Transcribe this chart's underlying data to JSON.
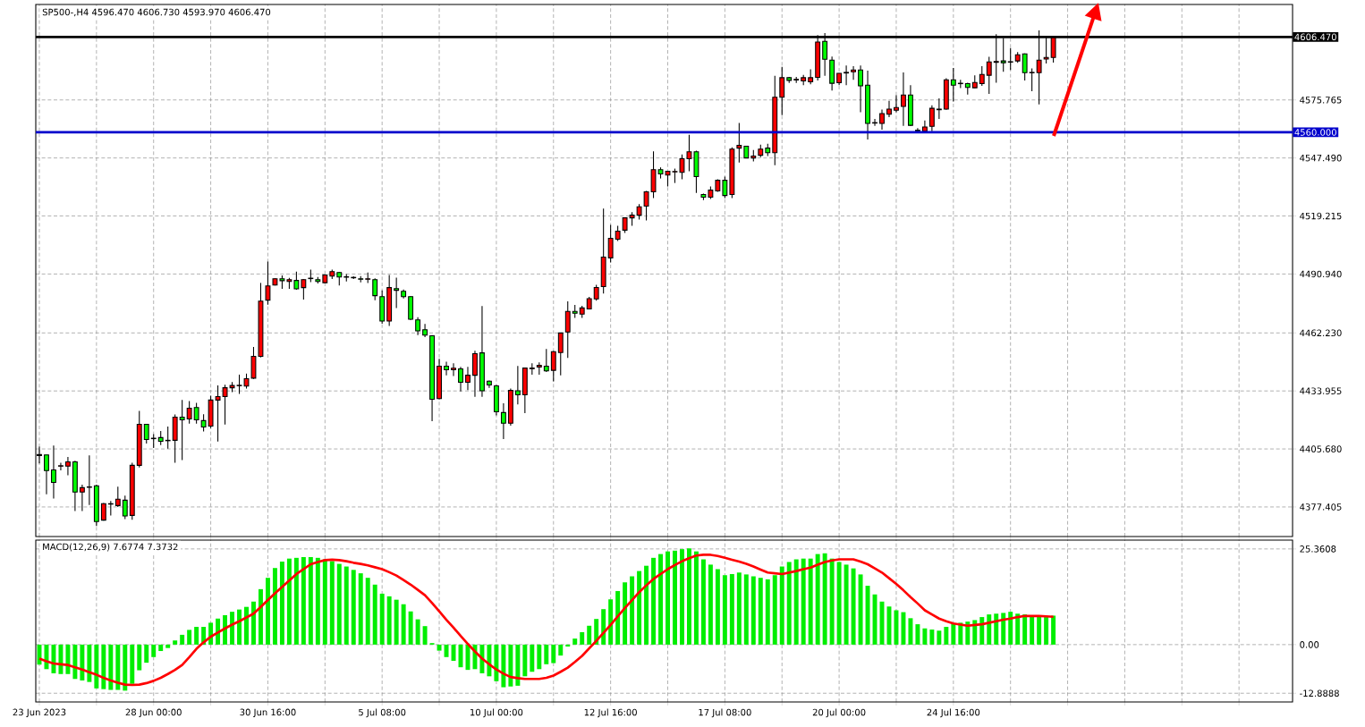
{
  "chart_data": [
    {
      "type": "candlestick",
      "title": "SP500-,H4  4596.470 4606.730 4593.970 4606.470",
      "categories": [
        null,
        null,
        null,
        null,
        null,
        null,
        null,
        null,
        null,
        null,
        null,
        null,
        null,
        null,
        null,
        null,
        null,
        null,
        null,
        null,
        null,
        null,
        null,
        null,
        null,
        null,
        null,
        null,
        null,
        null,
        null,
        null,
        null,
        null,
        null,
        null,
        null,
        null,
        null,
        null,
        null,
        null,
        null,
        null,
        null,
        null,
        null,
        null,
        null,
        null,
        null,
        null,
        null,
        null,
        null,
        null,
        null,
        null,
        null,
        null,
        null,
        null,
        null,
        null,
        null,
        null,
        null,
        null,
        null,
        null,
        null,
        null,
        null,
        null,
        null,
        null,
        null,
        null,
        null,
        null,
        null,
        null,
        null,
        null,
        null,
        null,
        null,
        null,
        null,
        null,
        null,
        null,
        null,
        null,
        null,
        null,
        null,
        null,
        null,
        null,
        null,
        null,
        null,
        null,
        null,
        null,
        null,
        null,
        null,
        null,
        null,
        null,
        null,
        null,
        null,
        null,
        null,
        null,
        null,
        null,
        null,
        null,
        null,
        null,
        null,
        null,
        null,
        null,
        null,
        null,
        null,
        null,
        null,
        null,
        null,
        null,
        null,
        null,
        null,
        null,
        null,
        null,
        null,
        null,
        null,
        null,
        null,
        null,
        null,
        null,
        null,
        null,
        null,
        null,
        null,
        null,
        null,
        null,
        null,
        null,
        null,
        null,
        null,
        null,
        null,
        null,
        null,
        null,
        null,
        null,
        null,
        null,
        null,
        null,
        null,
        null
      ],
      "ohlc": [
        [
          4402.5,
          4406.8,
          4398.6,
          4403.0
        ],
        [
          4402.8,
          4402.8,
          4383.6,
          4395.1
        ],
        [
          4395.5,
          4407.3,
          4381.5,
          4389.4
        ],
        [
          4397.3,
          4398.9,
          4395.2,
          4397.5
        ],
        [
          4397.3,
          4401.8,
          4392.8,
          4399.4
        ],
        [
          4399.4,
          4399.9,
          4375.4,
          4384.7
        ],
        [
          4384.7,
          4388.3,
          4375.4,
          4386.8
        ],
        [
          4387.0,
          4402.5,
          4378.4,
          4387.2
        ],
        [
          4387.7,
          4388.3,
          4368.1,
          4370.3
        ],
        [
          4371.0,
          4379.3,
          4370.7,
          4379.0
        ],
        [
          4378.8,
          4380.3,
          4373.2,
          4379.0
        ],
        [
          4378.1,
          4387.3,
          4377.4,
          4381.2
        ],
        [
          4380.7,
          4382.9,
          4371.5,
          4373.0
        ],
        [
          4373.3,
          4399.0,
          4371.2,
          4397.7
        ],
        [
          4397.7,
          4424.2,
          4396.7,
          4417.7
        ],
        [
          4417.7,
          4417.7,
          4408.3,
          4410.3
        ],
        [
          4410.7,
          4412.9,
          4406.1,
          4410.9
        ],
        [
          4411.2,
          4414.4,
          4407.6,
          4409.4
        ],
        [
          4409.7,
          4416.6,
          4405.8,
          4409.9
        ],
        [
          4409.9,
          4422.5,
          4398.9,
          4421.2
        ],
        [
          4421.2,
          4429.6,
          4400.3,
          4419.9
        ],
        [
          4420.3,
          4429.0,
          4418.0,
          4425.5
        ],
        [
          4425.9,
          4428.2,
          4418.0,
          4419.9
        ],
        [
          4419.5,
          4422.6,
          4414.2,
          4416.4
        ],
        [
          4416.8,
          4431.6,
          4415.8,
          4429.5
        ],
        [
          4429.5,
          4436.6,
          4409.3,
          4431.2
        ],
        [
          4431.2,
          4437.0,
          4417.6,
          4435.5
        ],
        [
          4435.5,
          4438.3,
          4433.4,
          4436.6
        ],
        [
          4436.5,
          4441.9,
          4432.5,
          4436.7
        ],
        [
          4436.3,
          4442.4,
          4435.1,
          4439.9
        ],
        [
          4440.2,
          4455.4,
          4439.8,
          4450.8
        ],
        [
          4450.8,
          4486.6,
          4450.3,
          4477.7
        ],
        [
          4478.2,
          4497.0,
          4476.0,
          4485.1
        ],
        [
          4485.6,
          4488.8,
          4485.4,
          4488.6
        ],
        [
          4488.6,
          4490.2,
          4483.7,
          4487.7
        ],
        [
          4487.3,
          4489.1,
          4483.7,
          4488.2
        ],
        [
          4487.8,
          4492.1,
          4483.3,
          4483.7
        ],
        [
          4484.3,
          4488.4,
          4478.5,
          4488.2
        ],
        [
          4488.7,
          4493.1,
          4487.0,
          4488.9
        ],
        [
          4488.2,
          4489.5,
          4486.3,
          4487.3
        ],
        [
          4486.7,
          4490.7,
          4486.5,
          4490.5
        ],
        [
          4489.9,
          4493.1,
          4488.5,
          4492.1
        ],
        [
          4491.7,
          4491.9,
          4485.4,
          4489.5
        ],
        [
          4489.6,
          4490.9,
          4487.3,
          4489.4
        ],
        [
          4489.3,
          4489.8,
          4488.5,
          4489.1
        ],
        [
          4488.6,
          4489.9,
          4486.9,
          4488.4
        ],
        [
          4488.4,
          4491.7,
          4486.6,
          4488.6
        ],
        [
          4488.2,
          4488.8,
          4478.2,
          4480.4
        ],
        [
          4479.9,
          4483.0,
          4466.7,
          4468.0
        ],
        [
          4468.0,
          4490.5,
          4465.6,
          4484.3
        ],
        [
          4483.8,
          4489.2,
          4474.3,
          4483.0
        ],
        [
          4482.5,
          4483.4,
          4479.0,
          4479.9
        ],
        [
          4479.9,
          4480.1,
          4468.5,
          4468.9
        ],
        [
          4468.6,
          4469.9,
          4461.2,
          4463.2
        ],
        [
          4463.8,
          4466.6,
          4460.2,
          4461.2
        ],
        [
          4460.8,
          4461.2,
          4419.2,
          4429.9
        ],
        [
          4430.2,
          4449.6,
          4429.9,
          4446.0
        ],
        [
          4446.0,
          4448.2,
          4441.5,
          4444.3
        ],
        [
          4444.3,
          4447.4,
          4441.2,
          4445.0
        ],
        [
          4444.7,
          4445.7,
          4433.7,
          4438.2
        ],
        [
          4438.2,
          4445.7,
          4434.4,
          4441.6
        ],
        [
          4441.6,
          4453.5,
          4431.1,
          4452.1
        ],
        [
          4452.5,
          4475.3,
          4431.1,
          4434.0
        ],
        [
          4438.7,
          4439.0,
          4435.4,
          4436.9
        ],
        [
          4436.4,
          4436.9,
          4422.1,
          4423.8
        ],
        [
          4423.4,
          4427.9,
          4410.5,
          4418.2
        ],
        [
          4418.2,
          4435.1,
          4417.0,
          4434.2
        ],
        [
          4434.0,
          4446.1,
          4427.4,
          4432.1
        ],
        [
          4432.1,
          4445.3,
          4423.1,
          4445.1
        ],
        [
          4444.8,
          4447.4,
          4441.9,
          4445.1
        ],
        [
          4445.6,
          4447.9,
          4441.9,
          4446.4
        ],
        [
          4446.0,
          4454.4,
          4443.2,
          4443.7
        ],
        [
          4444.0,
          4453.4,
          4438.6,
          4453.1
        ],
        [
          4452.7,
          4462.4,
          4441.6,
          4462.2
        ],
        [
          4462.7,
          4477.6,
          4450.1,
          4472.7
        ],
        [
          4472.7,
          4475.9,
          4469.6,
          4471.8
        ],
        [
          4471.4,
          4475.4,
          4469.6,
          4474.4
        ],
        [
          4473.9,
          4479.8,
          4473.7,
          4478.9
        ],
        [
          4478.8,
          4485.7,
          4477.9,
          4484.4
        ],
        [
          4484.8,
          4522.8,
          4481.4,
          4499.2
        ],
        [
          4498.8,
          4514.9,
          4496.6,
          4508.3
        ],
        [
          4507.9,
          4514.4,
          4507.0,
          4511.8
        ],
        [
          4512.3,
          4518.5,
          4510.9,
          4518.3
        ],
        [
          4518.3,
          4521.1,
          4514.4,
          4519.6
        ],
        [
          4519.6,
          4525.0,
          4517.5,
          4523.7
        ],
        [
          4524.0,
          4531.4,
          4517.0,
          4531.0
        ],
        [
          4531.0,
          4550.7,
          4527.9,
          4541.8
        ],
        [
          4541.8,
          4542.9,
          4537.5,
          4539.7
        ],
        [
          4539.2,
          4541.2,
          4533.6,
          4541.0
        ],
        [
          4540.7,
          4542.3,
          4535.3,
          4540.9
        ],
        [
          4540.5,
          4549.2,
          4537.1,
          4547.1
        ],
        [
          4547.1,
          4558.8,
          4541.0,
          4550.5
        ],
        [
          4550.5,
          4551.0,
          4530.4,
          4538.4
        ],
        [
          4529.7,
          4530.1,
          4527.0,
          4528.4
        ],
        [
          4528.4,
          4533.6,
          4527.5,
          4531.8
        ],
        [
          4531.4,
          4537.1,
          4531.0,
          4536.6
        ],
        [
          4536.6,
          4538.4,
          4527.9,
          4529.2
        ],
        [
          4529.7,
          4552.7,
          4527.9,
          4551.8
        ],
        [
          4552.3,
          4564.6,
          4545.3,
          4553.6
        ],
        [
          4553.2,
          4553.4,
          4547.3,
          4547.5
        ],
        [
          4547.5,
          4551.4,
          4545.8,
          4548.4
        ],
        [
          4548.8,
          4554.0,
          4547.9,
          4551.8
        ],
        [
          4552.3,
          4554.4,
          4548.4,
          4550.1
        ],
        [
          4550.1,
          4587.5,
          4544.0,
          4577.1
        ],
        [
          4577.1,
          4591.9,
          4568.4,
          4586.6
        ],
        [
          4586.6,
          4587.0,
          4584.0,
          4585.3
        ],
        [
          4585.5,
          4587.0,
          4584.0,
          4585.8
        ],
        [
          4585.0,
          4588.0,
          4583.0,
          4586.6
        ],
        [
          4584.6,
          4590.7,
          4583.4,
          4586.6
        ],
        [
          4586.8,
          4607.4,
          4585.2,
          4604.0
        ],
        [
          4604.3,
          4608.4,
          4587.5,
          4595.6
        ],
        [
          4595.2,
          4596.9,
          4580.3,
          4583.9
        ],
        [
          4584.2,
          4588.9,
          4583.0,
          4588.7
        ],
        [
          4588.9,
          4592.6,
          4583.0,
          4589.2
        ],
        [
          4589.5,
          4592.2,
          4585.6,
          4590.4
        ],
        [
          4590.4,
          4592.6,
          4569.8,
          4582.6
        ],
        [
          4583.0,
          4590.1,
          4556.5,
          4564.3
        ],
        [
          4564.5,
          4566.5,
          4563.1,
          4564.7
        ],
        [
          4564.3,
          4571.1,
          4561.3,
          4569.1
        ],
        [
          4568.8,
          4575.3,
          4567.4,
          4571.3
        ],
        [
          4570.8,
          4578.1,
          4569.8,
          4572.1
        ],
        [
          4572.6,
          4589.2,
          4563.1,
          4578.2
        ],
        [
          4578.2,
          4583.0,
          4563.0,
          4563.4
        ],
        [
          4561.0,
          4562.0,
          4559.7,
          4560.7
        ],
        [
          4560.5,
          4565.8,
          4560.3,
          4562.6
        ],
        [
          4562.9,
          4573.2,
          4560.5,
          4571.7
        ],
        [
          4571.3,
          4576.5,
          4566.5,
          4571.0
        ],
        [
          4571.3,
          4586.3,
          4571.0,
          4585.6
        ],
        [
          4585.6,
          4591.3,
          4575.0,
          4583.0
        ],
        [
          4583.7,
          4585.6,
          4581.6,
          4583.9
        ],
        [
          4583.7,
          4584.2,
          4578.4,
          4581.9
        ],
        [
          4581.7,
          4587.8,
          4581.5,
          4584.3
        ],
        [
          4583.7,
          4592.2,
          4582.6,
          4588.2
        ],
        [
          4587.8,
          4596.8,
          4578.7,
          4594.3
        ],
        [
          4594.1,
          4607.8,
          4584.2,
          4594.5
        ],
        [
          4594.8,
          4605.9,
          4589.5,
          4593.9
        ],
        [
          4594.2,
          4601.1,
          4590.4,
          4594.4
        ],
        [
          4594.8,
          4599.1,
          4593.9,
          4597.8
        ],
        [
          4598.2,
          4598.4,
          4585.2,
          4589.1
        ],
        [
          4589.0,
          4591.1,
          4580.0,
          4589.2
        ],
        [
          4589.1,
          4609.7,
          4573.6,
          4595.2
        ],
        [
          4595.7,
          4606.2,
          4593.5,
          4596.5
        ],
        [
          4596.47,
          4606.73,
          4593.97,
          4606.47
        ],
        null,
        null,
        null,
        null,
        null,
        null,
        null,
        null,
        null,
        null,
        null,
        null,
        null,
        null,
        null,
        null,
        null,
        null,
        null,
        null,
        null,
        null,
        null,
        null,
        null,
        null,
        null,
        null,
        null,
        null,
        null,
        null,
        null
      ],
      "colors": [
        "#ff0000",
        "#00ff00",
        "#00ff00",
        "#ff0000",
        "#ff0000",
        "#00ff00",
        "#ff0000",
        "#ff0000",
        "#00ff00",
        "#ff0000",
        "#ff0000",
        "#ff0000",
        "#00ff00",
        "#ff0000",
        "#ff0000",
        "#00ff00",
        "#ff0000",
        "#00ff00",
        "#ff0000",
        "#ff0000",
        "#00ff00",
        "#ff0000",
        "#00ff00",
        "#00ff00",
        "#ff0000",
        "#ff0000",
        "#ff0000",
        "#ff0000",
        "#ff0000",
        "#ff0000",
        "#ff0000",
        "#ff0000",
        "#ff0000",
        "#ff0000",
        "#00ff00",
        "#ff0000",
        "#00ff00",
        "#ff0000",
        "#ff0000",
        "#00ff00",
        "#ff0000",
        "#ff0000",
        "#00ff00",
        "#00ff00",
        "#00ff00",
        "#00ff00",
        "#ff0000",
        "#00ff00",
        "#00ff00",
        "#ff0000",
        "#00ff00",
        "#00ff00",
        "#00ff00",
        "#00ff00",
        "#00ff00",
        "#00ff00",
        "#ff0000",
        "#00ff00",
        "#ff0000",
        "#00ff00",
        "#ff0000",
        "#ff0000",
        "#00ff00",
        "#00ff00",
        "#00ff00",
        "#00ff00",
        "#ff0000",
        "#00ff00",
        "#ff0000",
        "#ff0000",
        "#ff0000",
        "#00ff00",
        "#ff0000",
        "#ff0000",
        "#ff0000",
        "#00ff00",
        "#ff0000",
        "#ff0000",
        "#ff0000",
        "#ff0000",
        "#ff0000",
        "#ff0000",
        "#ff0000",
        "#ff0000",
        "#ff0000",
        "#ff0000",
        "#ff0000",
        "#00ff00",
        "#ff0000",
        "#ff0000",
        "#ff0000",
        "#ff0000",
        "#00ff00",
        "#00ff00",
        "#ff0000",
        "#ff0000",
        "#00ff00",
        "#ff0000",
        "#ff0000",
        "#00ff00",
        "#ff0000",
        "#ff0000",
        "#00ff00",
        "#ff0000",
        "#ff0000",
        "#00ff00",
        "#ff0000",
        "#ff0000",
        "#ff0000",
        "#ff0000",
        "#00ff00",
        "#00ff00",
        "#ff0000",
        "#ff0000",
        "#ff0000",
        "#00ff00",
        "#00ff00",
        "#ff0000",
        "#ff0000",
        "#ff0000",
        "#ff0000",
        "#ff0000",
        "#00ff00",
        "#00ff00",
        "#ff0000",
        "#ff0000",
        "#00ff00",
        "#ff0000",
        "#00ff00",
        "#ff0000",
        "#00ff00",
        "#ff0000",
        "#ff0000",
        "#ff0000",
        "#ff0000",
        "#00ff00",
        "#ff0000",
        "#ff0000",
        "#00ff00",
        "#ff0000",
        "#ff0000",
        "#ff0000",
        "#ff0000",
        null,
        null,
        null,
        null,
        null,
        null,
        null,
        null,
        null,
        null,
        null,
        null,
        null,
        null,
        null,
        null,
        null,
        null,
        null,
        null,
        null,
        null,
        null,
        null,
        null,
        null,
        null,
        null,
        null,
        null,
        null,
        null,
        null
      ],
      "ylim": [
        4363.0,
        4622.3
      ],
      "yticks": [
        4377.405,
        {
          "value": 4405.68,
          "label": "4405.680"
        },
        4433.955,
        {
          "value": 4462.23,
          "label": "4462.230"
        },
        {
          "value": 4490.94,
          "label": "4490.940"
        },
        4519.215,
        {
          "value": 4547.49,
          "label": "4547.490"
        },
        4575.765
      ],
      "ref_lines": [
        {
          "axis": "y",
          "value": 4560,
          "label": "4560.000",
          "color": "#0000cc"
        },
        {
          "axis": "y",
          "value": 4606.47,
          "label": "4606.470",
          "color": "#000000"
        }
      ],
      "grid": true,
      "tick_labels": "y"
    },
    {
      "type": "bar",
      "title": "MACD(12,26,9) 7.6774 7.3732",
      "categories": [
        "23 Jun 2023",
        null,
        null,
        null,
        null,
        null,
        null,
        null,
        null,
        null,
        null,
        null,
        null,
        null,
        null,
        null,
        "28 Jun 00:00",
        null,
        null,
        null,
        null,
        null,
        null,
        null,
        null,
        null,
        null,
        null,
        null,
        null,
        null,
        null,
        "30 Jun 16:00",
        null,
        null,
        null,
        null,
        null,
        null,
        null,
        null,
        null,
        null,
        null,
        null,
        null,
        null,
        null,
        "5 Jul 08:00",
        null,
        null,
        null,
        null,
        null,
        null,
        null,
        null,
        null,
        null,
        null,
        null,
        null,
        null,
        null,
        "10 Jul 00:00",
        null,
        null,
        null,
        null,
        null,
        null,
        null,
        null,
        null,
        null,
        null,
        null,
        null,
        null,
        null,
        "12 Jul 16:00",
        null,
        null,
        null,
        null,
        null,
        null,
        null,
        null,
        null,
        null,
        null,
        null,
        null,
        null,
        null,
        "17 Jul 08:00",
        null,
        null,
        null,
        null,
        null,
        null,
        null,
        null,
        null,
        null,
        null,
        null,
        null,
        null,
        null,
        "20 Jul 00:00",
        null,
        null,
        null,
        null,
        null,
        null,
        null,
        null,
        null,
        null,
        null,
        null,
        null,
        null,
        null,
        "24 Jul 16:00",
        null,
        null,
        null,
        null,
        null,
        null,
        null,
        null,
        null,
        null,
        null,
        null,
        null,
        null,
        null,
        null,
        null,
        null,
        null,
        null,
        null,
        null,
        null,
        null,
        null,
        null,
        null,
        null,
        null,
        null,
        null,
        null,
        null,
        null,
        null,
        null,
        null,
        null,
        null,
        null,
        null,
        null,
        null,
        null,
        null,
        null,
        null
      ],
      "series": [
        {
          "type": "bar",
          "color": "#00ee00",
          "values": [
            -5.3,
            -6.5,
            -7.6,
            -7.8,
            -7.8,
            -9.1,
            -9.5,
            -9.9,
            -11.6,
            -11.8,
            -12.0,
            -12.0,
            -12.2,
            -10.4,
            -6.8,
            -4.8,
            -3.3,
            -1.7,
            -0.9,
            1.1,
            2.6,
            3.9,
            4.7,
            4.7,
            5.8,
            6.9,
            7.8,
            8.7,
            9.3,
            10.0,
            11.4,
            14.7,
            17.7,
            20.3,
            22.0,
            22.8,
            23.0,
            23.2,
            23.2,
            23.0,
            22.6,
            22.1,
            21.4,
            20.7,
            19.8,
            18.9,
            17.7,
            15.9,
            13.5,
            12.8,
            11.9,
            10.7,
            8.8,
            6.7,
            4.9,
            0.4,
            -1.6,
            -3.3,
            -4.3,
            -6.0,
            -6.7,
            -6.5,
            -7.6,
            -8.4,
            -9.7,
            -11.3,
            -11.1,
            -10.9,
            -8.4,
            -7.2,
            -6.5,
            -5.2,
            -4.9,
            -2.9,
            -0.5,
            1.6,
            3.3,
            5.0,
            6.8,
            9.4,
            12.0,
            14.2,
            16.5,
            18.1,
            19.5,
            20.9,
            23.0,
            24.0,
            24.7,
            24.9,
            25.3,
            25.5,
            24.7,
            22.6,
            21.2,
            20.0,
            18.4,
            18.7,
            19.1,
            18.6,
            18.1,
            17.7,
            17.3,
            18.4,
            20.7,
            21.9,
            22.6,
            22.8,
            22.8,
            24.0,
            24.2,
            22.8,
            21.9,
            21.2,
            20.2,
            18.6,
            15.6,
            13.3,
            11.4,
            10.1,
            9.1,
            8.6,
            7.0,
            5.4,
            4.3,
            4.0,
            3.7,
            4.7,
            5.6,
            5.8,
            6.1,
            6.5,
            7.3,
            8.0,
            8.2,
            8.4,
            8.7,
            8.2,
            8.0,
            7.5,
            7.5,
            7.5,
            7.6774,
            null,
            null,
            null,
            null,
            null,
            null,
            null,
            null,
            null,
            null,
            null,
            null,
            null,
            null,
            null,
            null,
            null,
            null,
            null,
            null,
            null,
            null,
            null,
            null,
            null,
            null,
            null,
            null,
            null,
            null,
            null,
            null,
            null
          ]
        },
        {
          "type": "line",
          "color": "#ff0000",
          "marker": "none",
          "values": [
            -3.7,
            -4.4,
            -5.0,
            -5.2,
            -5.4,
            -6.0,
            -6.6,
            -7.3,
            -8.0,
            -8.8,
            -9.5,
            -10.1,
            -10.6,
            -10.7,
            -10.6,
            -10.2,
            -9.6,
            -8.8,
            -7.8,
            -6.7,
            -5.4,
            -3.3,
            -1.1,
            0.6,
            2.1,
            3.2,
            4.3,
            5.3,
            6.2,
            7.2,
            8.2,
            10.0,
            11.8,
            13.6,
            15.3,
            17.0,
            18.7,
            20.0,
            21.3,
            21.9,
            22.4,
            22.5,
            22.4,
            22.1,
            21.7,
            21.4,
            21.0,
            20.5,
            20.0,
            19.2,
            18.3,
            17.1,
            15.9,
            14.5,
            13.1,
            11.0,
            8.8,
            6.6,
            4.5,
            2.3,
            0.2,
            -1.8,
            -3.7,
            -5.2,
            -6.6,
            -7.7,
            -8.6,
            -8.9,
            -9.1,
            -9.1,
            -9.1,
            -8.8,
            -8.2,
            -7.2,
            -6.1,
            -4.6,
            -3.0,
            -1.0,
            1.0,
            3.1,
            5.2,
            7.5,
            9.7,
            11.8,
            13.9,
            15.7,
            17.4,
            18.7,
            20.0,
            21.1,
            22.1,
            22.9,
            23.6,
            23.8,
            23.8,
            23.5,
            23.0,
            22.5,
            22.0,
            21.4,
            20.7,
            19.9,
            19.1,
            18.9,
            18.7,
            19.1,
            19.5,
            20.0,
            20.4,
            21.2,
            21.9,
            22.3,
            22.6,
            22.6,
            22.6,
            22.0,
            21.3,
            20.2,
            19.1,
            17.6,
            16.1,
            14.4,
            12.6,
            10.9,
            9.1,
            8.0,
            6.9,
            6.2,
            5.6,
            5.3,
            5.0,
            5.2,
            5.4,
            5.8,
            6.2,
            6.6,
            6.9,
            7.3,
            7.6,
            7.6,
            7.6,
            7.5,
            7.3732,
            null,
            null,
            null,
            null,
            null,
            null,
            null,
            null,
            null,
            null,
            null,
            null,
            null,
            null,
            null,
            null,
            null,
            null,
            null,
            null,
            null,
            null,
            null,
            null,
            null,
            null,
            null,
            null,
            null,
            null,
            null,
            null,
            null
          ]
        }
      ],
      "ylim": [
        -15.2,
        27.7
      ],
      "yticks": [
        -12.8888,
        {
          "value": 0,
          "label": "0.00"
        },
        25.3608
      ],
      "grid": true
    }
  ]
}
